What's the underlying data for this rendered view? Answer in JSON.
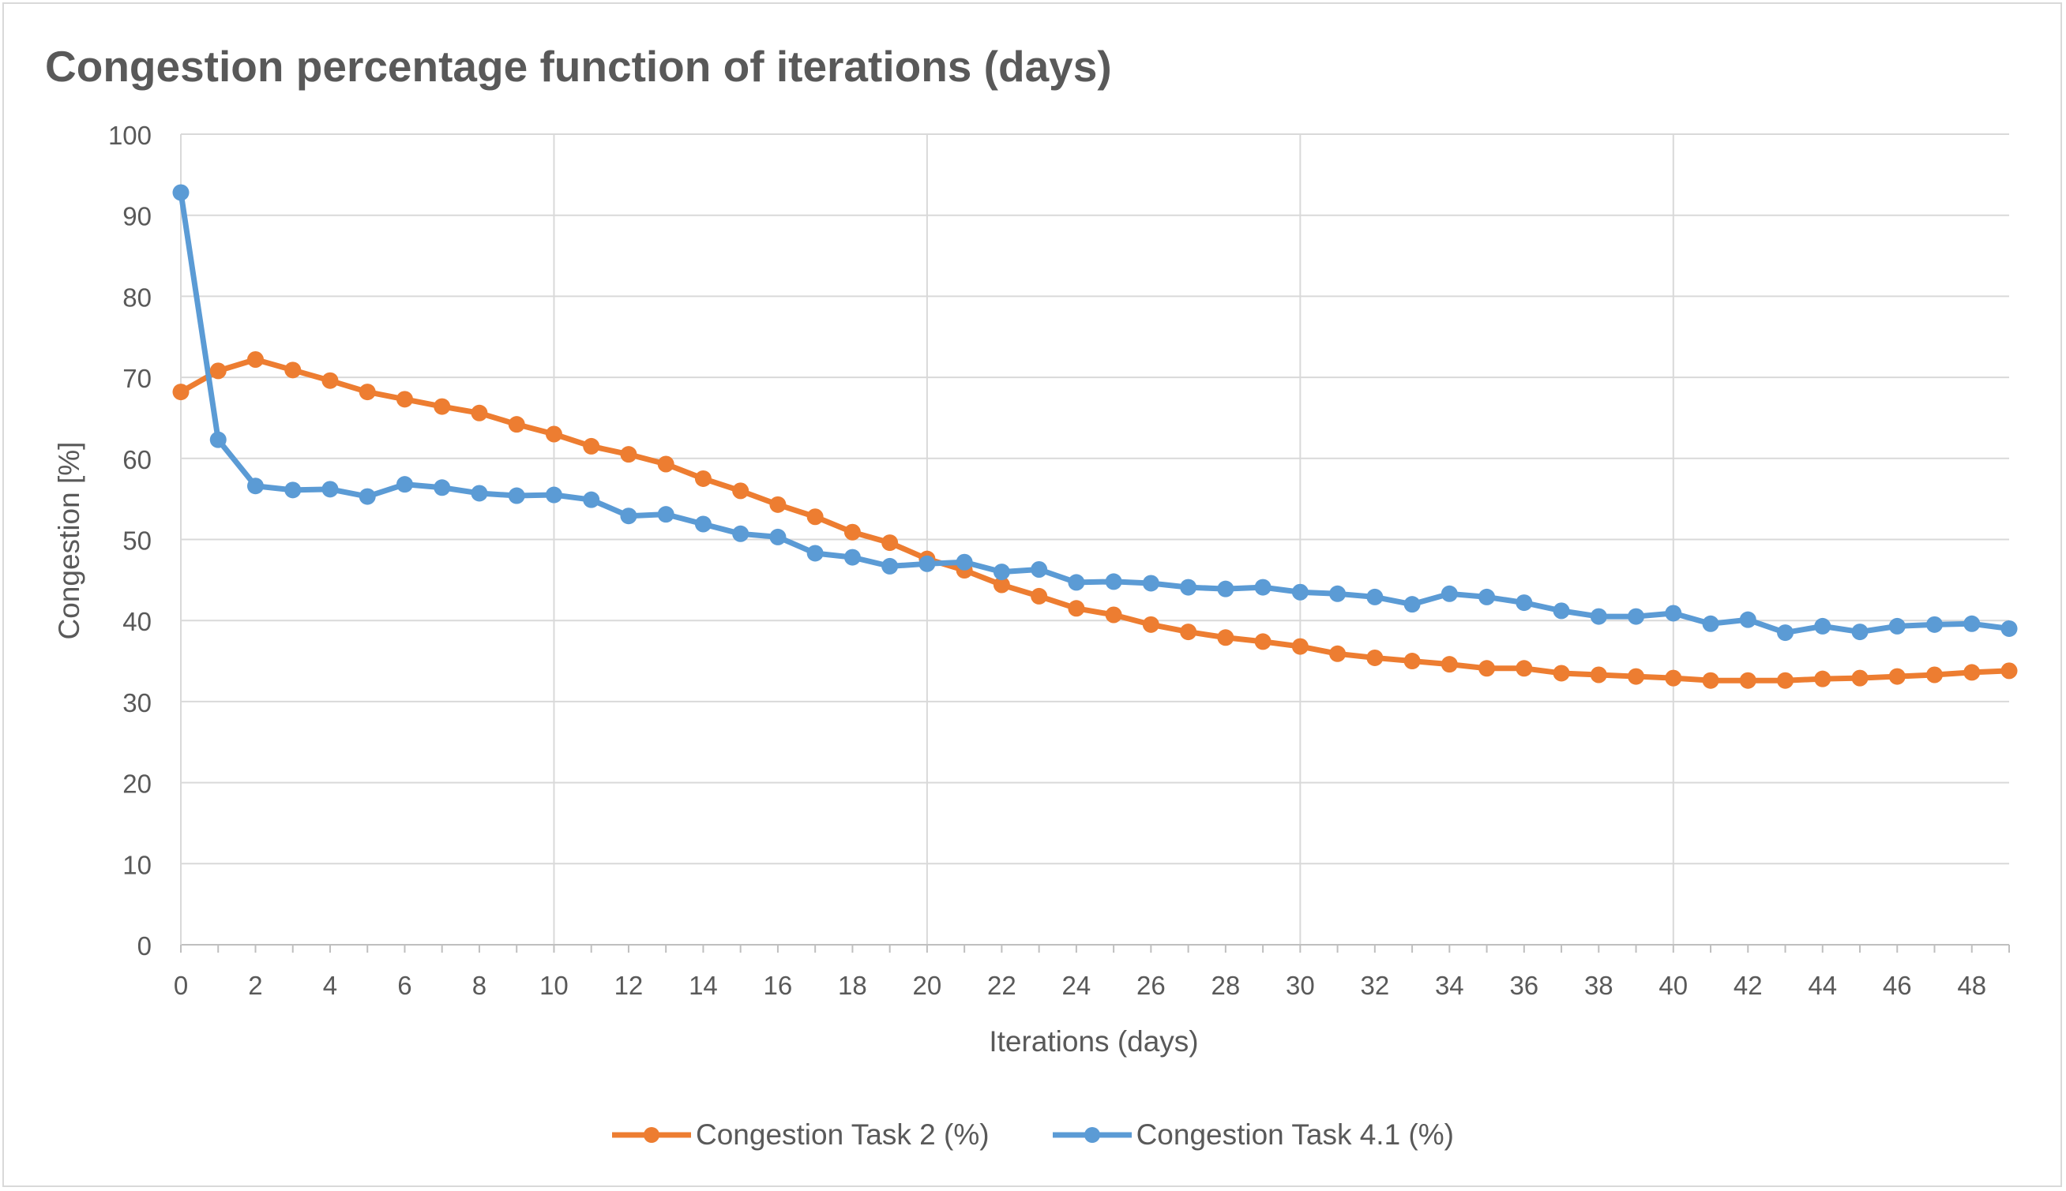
{
  "chart_data": {
    "type": "line",
    "title": "Congestion percentage function of iterations (days)",
    "xlabel": "Iterations (days)",
    "ylabel": "Congestion [%]",
    "xlim": [
      0,
      49
    ],
    "ylim": [
      0,
      100
    ],
    "y_ticks": [
      "0",
      "10",
      "20",
      "30",
      "40",
      "50",
      "60",
      "70",
      "80",
      "90",
      "100"
    ],
    "x_ticks": [
      "0",
      "2",
      "4",
      "6",
      "8",
      "10",
      "12",
      "14",
      "16",
      "18",
      "20",
      "22",
      "24",
      "26",
      "28",
      "30",
      "32",
      "34",
      "36",
      "38",
      "40",
      "42",
      "44",
      "46",
      "48"
    ],
    "grid": true,
    "legend_position": "bottom",
    "x": [
      0,
      1,
      2,
      3,
      4,
      5,
      6,
      7,
      8,
      9,
      10,
      11,
      12,
      13,
      14,
      15,
      16,
      17,
      18,
      19,
      20,
      21,
      22,
      23,
      24,
      25,
      26,
      27,
      28,
      29,
      30,
      31,
      32,
      33,
      34,
      35,
      36,
      37,
      38,
      39,
      40,
      41,
      42,
      43,
      44,
      45,
      46,
      47,
      48,
      49
    ],
    "series": [
      {
        "name": "Congestion Task 2 (%)",
        "color": "#ed7d31",
        "values": [
          68.2,
          70.8,
          72.2,
          70.9,
          69.6,
          68.2,
          67.3,
          66.4,
          65.6,
          64.2,
          63.0,
          61.5,
          60.5,
          59.3,
          57.5,
          56.0,
          54.3,
          52.8,
          50.9,
          49.6,
          47.6,
          46.2,
          44.4,
          43.0,
          41.5,
          40.7,
          39.5,
          38.6,
          37.9,
          37.4,
          36.8,
          35.9,
          35.4,
          35.0,
          34.6,
          34.1,
          34.1,
          33.5,
          33.3,
          33.1,
          32.9,
          32.6,
          32.6,
          32.6,
          32.8,
          32.9,
          33.1,
          33.3,
          33.6,
          33.8
        ]
      },
      {
        "name": "Congestion Task 4.1 (%)",
        "color": "#5b9bd5",
        "values": [
          92.8,
          62.3,
          56.6,
          56.1,
          56.2,
          55.3,
          56.8,
          56.4,
          55.7,
          55.4,
          55.5,
          54.9,
          52.9,
          53.1,
          51.9,
          50.7,
          50.3,
          48.3,
          47.8,
          46.7,
          47.0,
          47.2,
          46.0,
          46.3,
          44.7,
          44.8,
          44.6,
          44.1,
          43.9,
          44.1,
          43.5,
          43.3,
          42.9,
          42.0,
          43.3,
          42.9,
          42.2,
          41.2,
          40.5,
          40.5,
          40.9,
          39.6,
          40.1,
          38.5,
          39.3,
          38.6,
          39.3,
          39.5,
          39.6,
          39.0
        ]
      }
    ]
  }
}
